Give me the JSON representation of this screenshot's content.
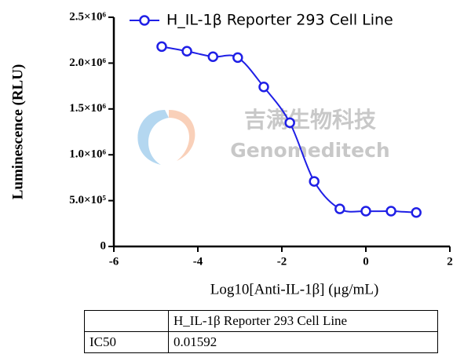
{
  "chart_data": {
    "type": "scatter",
    "xlabel": "Log10[Anti-IL-1β] (μg/mL)",
    "ylabel": "Luminescence (RLU)",
    "watermark": [
      "吉满生物科技",
      "Genomeditech"
    ],
    "x": [
      -4.86,
      -4.26,
      -3.64,
      -3.05,
      -2.43,
      -1.81,
      -1.23,
      -0.62,
      0,
      0.6,
      1.2
    ],
    "series": [
      {
        "name": "H_IL-1β Reporter 293 Cell Line",
        "color": "#1f1fe6",
        "values": [
          2180000,
          2130000,
          2070000,
          2060000,
          1740000,
          1350000,
          710000,
          410000,
          385000,
          385000,
          370000
        ]
      }
    ],
    "xlim": [
      -6,
      2
    ],
    "xticks": [
      -6,
      -4,
      -2,
      0,
      2
    ],
    "ylim": [
      0,
      2500000
    ],
    "yticks": [
      0,
      {
        "value": 500000,
        "label": "5.0×10⁵"
      },
      {
        "value": 1000000,
        "label": "1.0×10⁶"
      },
      {
        "value": 1500000,
        "label": "1.5×10⁶"
      },
      {
        "value": 2000000,
        "label": "2.0×10⁶"
      },
      {
        "value": 2500000,
        "label": "2.5×10⁶"
      }
    ]
  },
  "table": {
    "columns": [
      "H_IL-1β Reporter 293 Cell Line"
    ],
    "rows": [
      [
        "IC50",
        "0.01592"
      ]
    ]
  }
}
